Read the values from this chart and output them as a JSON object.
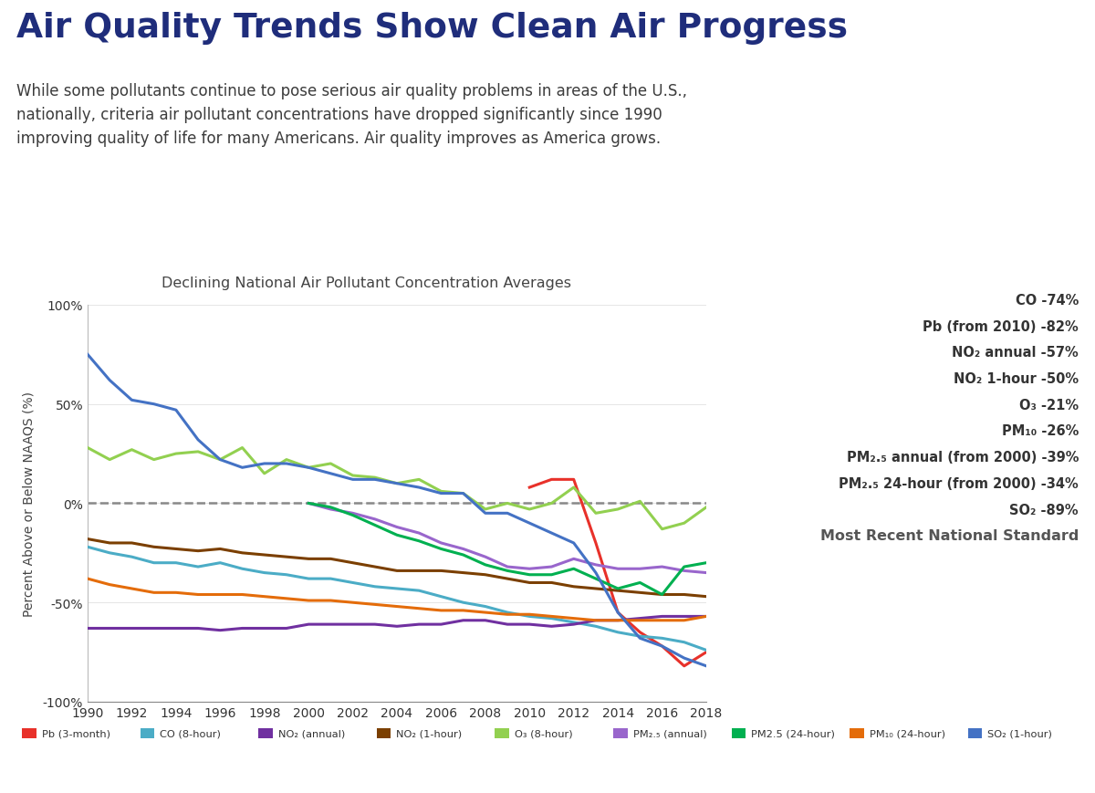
{
  "title": "Air Quality Trends Show Clean Air Progress",
  "subtitle": "While some pollutants continue to pose serious air quality problems in areas of the U.S.,\nnationally, criteria air pollutant concentrations have dropped significantly since 1990\nimproving quality of life for many Americans. Air quality improves as America grows.",
  "chart_title": "Declining National Air Pollutant Concentration Averages",
  "ylabel": "Percent Above or Below NAAQS (%)",
  "years": [
    1990,
    1991,
    1992,
    1993,
    1994,
    1995,
    1996,
    1997,
    1998,
    1999,
    2000,
    2001,
    2002,
    2003,
    2004,
    2005,
    2006,
    2007,
    2008,
    2009,
    2010,
    2011,
    2012,
    2013,
    2014,
    2015,
    2016,
    2017,
    2018
  ],
  "series": [
    {
      "key": "Pb",
      "color": "#e8312a",
      "label": "Pb (3-month)",
      "data": [
        null,
        null,
        null,
        null,
        null,
        null,
        null,
        null,
        null,
        null,
        null,
        null,
        null,
        null,
        null,
        null,
        null,
        null,
        null,
        null,
        8,
        12,
        12,
        -20,
        -55,
        -65,
        -72,
        -82,
        -75
      ]
    },
    {
      "key": "CO",
      "color": "#4bacc6",
      "label": "CO (8-hour)",
      "data": [
        -22,
        -25,
        -27,
        -30,
        -30,
        -32,
        -30,
        -33,
        -35,
        -36,
        -38,
        -38,
        -40,
        -42,
        -43,
        -44,
        -47,
        -50,
        -52,
        -55,
        -57,
        -58,
        -60,
        -62,
        -65,
        -67,
        -68,
        -70,
        -74
      ]
    },
    {
      "key": "NO2_annual",
      "color": "#7030a0",
      "label": "NO₂ (annual)",
      "data": [
        -63,
        -63,
        -63,
        -63,
        -63,
        -63,
        -64,
        -63,
        -63,
        -63,
        -61,
        -61,
        -61,
        -61,
        -62,
        -61,
        -61,
        -59,
        -59,
        -61,
        -61,
        -62,
        -61,
        -59,
        -59,
        -58,
        -57,
        -57,
        -57
      ]
    },
    {
      "key": "NO2_1hour",
      "color": "#7b3f00",
      "label": "NO₂ (1-hour)",
      "data": [
        -18,
        -20,
        -20,
        -22,
        -23,
        -24,
        -23,
        -25,
        -26,
        -27,
        -28,
        -28,
        -30,
        -32,
        -34,
        -34,
        -34,
        -35,
        -36,
        -38,
        -40,
        -40,
        -42,
        -43,
        -44,
        -45,
        -46,
        -46,
        -47
      ]
    },
    {
      "key": "O3",
      "color": "#92d050",
      "label": "O₃ (8-hour)",
      "data": [
        28,
        22,
        27,
        22,
        25,
        26,
        22,
        28,
        15,
        22,
        18,
        20,
        14,
        13,
        10,
        12,
        6,
        5,
        -3,
        0,
        -3,
        0,
        8,
        -5,
        -3,
        1,
        -13,
        -10,
        -2
      ]
    },
    {
      "key": "PM25_annual",
      "color": "#9966cc",
      "label": "PM₂.₅ (annual)",
      "data": [
        null,
        null,
        null,
        null,
        null,
        null,
        null,
        null,
        null,
        null,
        0,
        -3,
        -5,
        -8,
        -12,
        -15,
        -20,
        -23,
        -27,
        -32,
        -33,
        -32,
        -28,
        -31,
        -33,
        -33,
        -32,
        -34,
        -35
      ]
    },
    {
      "key": "PM25_24hour",
      "color": "#00b050",
      "label": "PM2.5 (24-hour)",
      "data": [
        null,
        null,
        null,
        null,
        null,
        null,
        null,
        null,
        null,
        null,
        0,
        -2,
        -6,
        -11,
        -16,
        -19,
        -23,
        -26,
        -31,
        -34,
        -36,
        -36,
        -33,
        -38,
        -43,
        -40,
        -46,
        -32,
        -30
      ]
    },
    {
      "key": "PM10",
      "color": "#e46c0a",
      "label": "PM₁₀ (24-hour)",
      "data": [
        -38,
        -41,
        -43,
        -45,
        -45,
        -46,
        -46,
        -46,
        -47,
        -48,
        -49,
        -49,
        -50,
        -51,
        -52,
        -53,
        -54,
        -54,
        -55,
        -56,
        -56,
        -57,
        -58,
        -59,
        -59,
        -59,
        -59,
        -59,
        -57
      ]
    },
    {
      "key": "SO2",
      "color": "#4472c4",
      "label": "SO₂ (1-hour)",
      "data": [
        75,
        62,
        52,
        50,
        47,
        32,
        22,
        18,
        20,
        20,
        18,
        15,
        12,
        12,
        10,
        8,
        5,
        5,
        -5,
        -5,
        -10,
        -15,
        -20,
        -35,
        -55,
        -68,
        -72,
        -78,
        -82
      ]
    }
  ],
  "ann_lines": [
    [
      "CO",
      " -74%"
    ],
    [
      "Pb (from 2010)",
      " -82%"
    ],
    [
      "NO₂ annual",
      " -57%"
    ],
    [
      "NO₂ 1-hour",
      " -50%"
    ],
    [
      "O₃",
      " -21%"
    ],
    [
      "PM₁₀",
      " -26%"
    ],
    [
      "PM₂.₅ annual (from 2000)",
      " -39%"
    ],
    [
      "PM₂.₅ 24-hour (from 2000)",
      " -34%"
    ],
    [
      "SO₂",
      " -89%"
    ]
  ],
  "legend_items": [
    [
      "Pb (3-month)",
      "#e8312a"
    ],
    [
      "CO (8-hour)",
      "#4bacc6"
    ],
    [
      "NO₂ (annual)",
      "#7030a0"
    ],
    [
      "NO₂ (1-hour)",
      "#7b3f00"
    ],
    [
      "O₃ (8-hour)",
      "#92d050"
    ],
    [
      "PM₂.₅ (annual)",
      "#9966cc"
    ],
    [
      "PM2.5 (24-hour)",
      "#00b050"
    ],
    [
      "PM₁₀ (24-hour)",
      "#e46c0a"
    ],
    [
      "SO₂ (1-hour)",
      "#4472c4"
    ]
  ],
  "ylim": [
    -100,
    100
  ],
  "yticks": [
    -100,
    -50,
    0,
    50,
    100
  ],
  "title_color": "#1f2d7b",
  "subtitle_color": "#3c3c3c",
  "background_color": "#ffffff"
}
